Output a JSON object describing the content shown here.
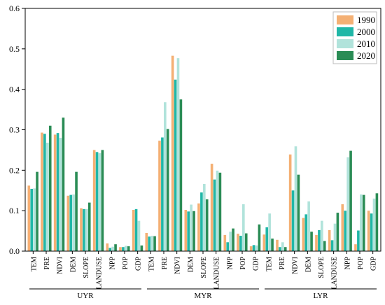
{
  "chart_data": {
    "type": "bar",
    "title": "",
    "xlabel": "",
    "ylabel": "",
    "ylim": [
      0,
      0.6
    ],
    "yticks": [
      "0.0",
      "0.1",
      "0.2",
      "0.3",
      "0.4",
      "0.5",
      "0.6"
    ],
    "grid": false,
    "legend_position": "top-right",
    "colors": [
      "#F4B074",
      "#20B7A7",
      "#B1E3DB",
      "#2A8C55"
    ],
    "series_names": [
      "1990",
      "2000",
      "2010",
      "2020"
    ],
    "factors": [
      "TEM",
      "PRE",
      "NDVI",
      "DEM",
      "SLOPE",
      "LANDUSE",
      "NPP",
      "POP",
      "GDP"
    ],
    "regions": [
      {
        "name": "UYR",
        "values": {
          "1990": [
            0.162,
            0.293,
            0.288,
            0.137,
            0.106,
            0.25,
            0.019,
            0.01,
            0.102
          ],
          "2000": [
            0.154,
            0.29,
            0.292,
            0.139,
            0.104,
            0.245,
            0.008,
            0.01,
            0.104
          ],
          "2010": [
            0.155,
            0.268,
            0.28,
            0.14,
            0.104,
            0.242,
            0.011,
            0.013,
            0.075
          ],
          "2020": [
            0.196,
            0.31,
            0.33,
            0.196,
            0.12,
            0.25,
            0.017,
            0.012,
            0.014
          ]
        }
      },
      {
        "name": "MYR",
        "values": {
          "1990": [
            0.045,
            0.273,
            0.483,
            0.102,
            0.118,
            0.216,
            0.04,
            0.043,
            0.012
          ],
          "2000": [
            0.036,
            0.281,
            0.424,
            0.098,
            0.145,
            0.177,
            0.022,
            0.038,
            0.015
          ],
          "2010": [
            0.038,
            0.368,
            0.477,
            0.115,
            0.166,
            0.199,
            0.048,
            0.116,
            0.014
          ],
          "2020": [
            0.037,
            0.302,
            0.375,
            0.099,
            0.128,
            0.194,
            0.056,
            0.044,
            0.066
          ]
        }
      },
      {
        "name": "LYR",
        "values": {
          "1990": [
            0.041,
            0.028,
            0.239,
            0.082,
            0.04,
            0.052,
            0.116,
            0.017,
            0.1
          ],
          "2000": [
            0.059,
            0.01,
            0.15,
            0.091,
            0.052,
            0.027,
            0.1,
            0.051,
            0.093
          ],
          "2010": [
            0.093,
            0.022,
            0.259,
            0.123,
            0.075,
            0.068,
            0.232,
            0.14,
            0.13
          ],
          "2020": [
            0.031,
            0.01,
            0.189,
            0.048,
            0.025,
            0.095,
            0.248,
            0.139,
            0.143
          ]
        }
      }
    ]
  }
}
